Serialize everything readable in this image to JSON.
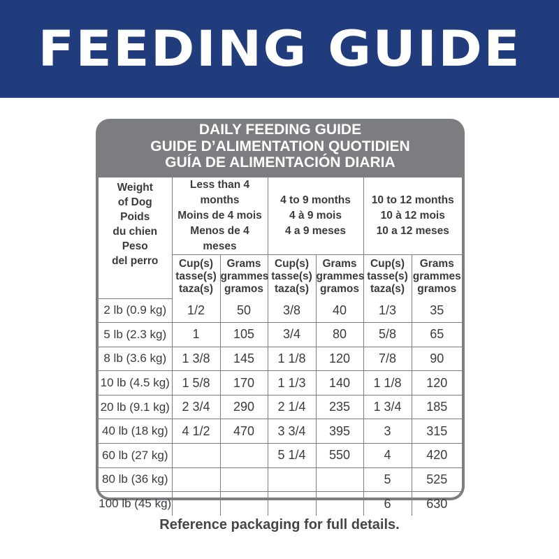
{
  "banner": {
    "title": "FEEDING GUIDE"
  },
  "guide": {
    "heading": [
      "DAILY FEEDING GUIDE",
      "GUIDE D’ALIMENTATION QUOTIDIEN",
      "GUÍA DE ALIMENTACIÓN DIARIA"
    ],
    "weight_header": [
      "Weight",
      "of Dog",
      "Poids",
      "du chien",
      "Peso",
      "del perro"
    ],
    "age_groups": [
      {
        "lines": [
          "Less than 4 months",
          "Moins de 4 mois",
          "Menos de 4 meses"
        ]
      },
      {
        "lines": [
          "4 to 9 months",
          "4 à 9 mois",
          "4 a 9 meses"
        ]
      },
      {
        "lines": [
          "10 to 12 months",
          "10 à 12 mois",
          "10 a 12 meses"
        ]
      }
    ],
    "cups_header": [
      "Cup(s)",
      "tasse(s)",
      "taza(s)"
    ],
    "grams_header": [
      "Grams",
      "grammes",
      "gramos"
    ],
    "rows": [
      {
        "weight": "2 lb (0.9 kg)",
        "cells": [
          "1/2",
          "50",
          "3/8",
          "40",
          "1/3",
          "35"
        ]
      },
      {
        "weight": "5 lb (2.3 kg)",
        "cells": [
          "1",
          "105",
          "3/4",
          "80",
          "5/8",
          "65"
        ]
      },
      {
        "weight": "8 lb (3.6 kg)",
        "cells": [
          "1 3/8",
          "145",
          "1 1/8",
          "120",
          "7/8",
          "90"
        ]
      },
      {
        "weight": "10 lb (4.5 kg)",
        "cells": [
          "1 5/8",
          "170",
          "1 1/3",
          "140",
          "1 1/8",
          "120"
        ]
      },
      {
        "weight": "20 lb (9.1 kg)",
        "cells": [
          "2 3/4",
          "290",
          "2 1/4",
          "235",
          "1 3/4",
          "185"
        ]
      },
      {
        "weight": "40 lb (18 kg)",
        "cells": [
          "4 1/2",
          "470",
          "3 3/4",
          "395",
          "3",
          "315"
        ]
      },
      {
        "weight": "60 lb (27 kg)",
        "cells": [
          "",
          "",
          "5 1/4",
          "550",
          "4",
          "420"
        ]
      },
      {
        "weight": "80 lb (36 kg)",
        "cells": [
          "",
          "",
          "",
          "",
          "5",
          "525"
        ]
      },
      {
        "weight": "100 lb (45 kg)",
        "cells": [
          "",
          "",
          "",
          "",
          "6",
          "630"
        ]
      }
    ]
  },
  "footer": {
    "note": "Reference packaging for full details."
  },
  "colors": {
    "banner": "#203c7c",
    "panel": "#7c7d80",
    "text": "#3a3b3d"
  }
}
